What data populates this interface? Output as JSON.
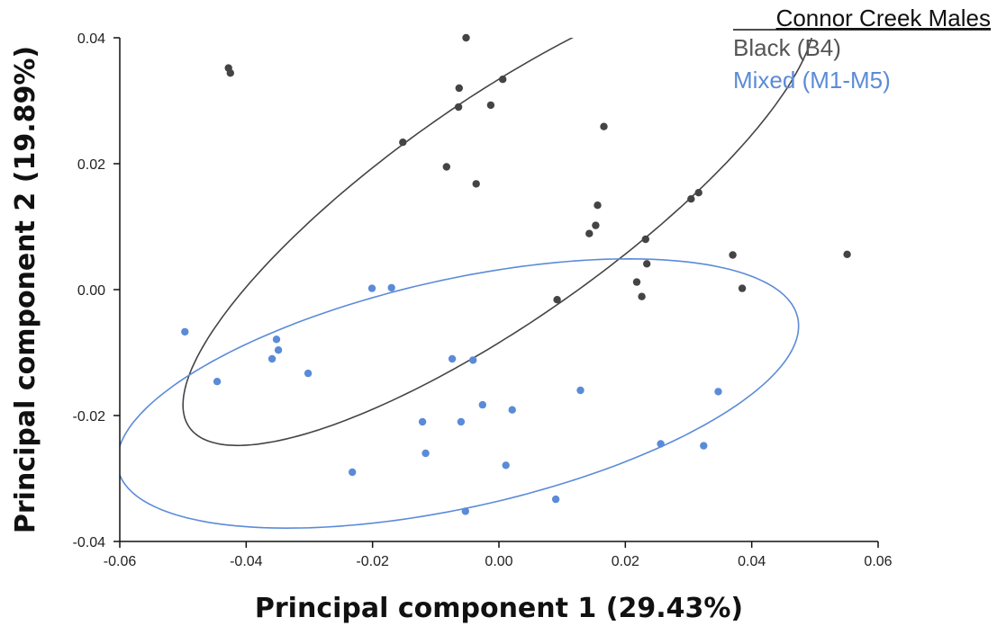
{
  "chart_data": {
    "type": "scatter",
    "title": "",
    "xlabel": "Principal component 1 (29.43%)",
    "ylabel": "Principal component 2 (19.89%)",
    "xlim": [
      -0.06,
      0.06
    ],
    "ylim": [
      -0.04,
      0.04
    ],
    "xticks": [
      -0.06,
      -0.04,
      -0.02,
      0.0,
      0.02,
      0.04,
      0.06
    ],
    "yticks": [
      -0.04,
      -0.02,
      0.0,
      0.02,
      0.04
    ],
    "xtick_labels": [
      "-0.06",
      "-0.04",
      "-0.02",
      "0.00",
      "0.02",
      "0.04",
      "0.06"
    ],
    "ytick_labels": [
      "-0.04",
      "-0.02",
      "0.00",
      "0.02",
      "0.04"
    ],
    "grid": false,
    "legend": {
      "title": "Connor Creek Males",
      "placement": "top-right",
      "entries": [
        "Black (B4)",
        "Mixed (M1-M5)"
      ]
    },
    "series": [
      {
        "name": "Black (B4)",
        "color": "#444444",
        "points": [
          [
            -0.0428,
            0.0352
          ],
          [
            -0.0425,
            0.0344
          ],
          [
            -0.0052,
            0.04
          ],
          [
            -0.0063,
            0.032
          ],
          [
            0.0006,
            0.0334
          ],
          [
            -0.0064,
            0.029
          ],
          [
            -0.0013,
            0.0293
          ],
          [
            0.0166,
            0.0259
          ],
          [
            -0.0152,
            0.0234
          ],
          [
            -0.0083,
            0.0195
          ],
          [
            -0.0036,
            0.0168
          ],
          [
            0.0156,
            0.0134
          ],
          [
            0.0153,
            0.0102
          ],
          [
            0.0143,
            0.0089
          ],
          [
            0.0232,
            0.008
          ],
          [
            0.0304,
            0.0144
          ],
          [
            0.0316,
            0.0154
          ],
          [
            0.0234,
            0.0041
          ],
          [
            0.037,
            0.0055
          ],
          [
            0.0551,
            0.0056
          ],
          [
            0.0218,
            0.0012
          ],
          [
            0.0385,
            0.0002
          ],
          [
            0.0226,
            -0.0011
          ],
          [
            0.0092,
            -0.0016
          ]
        ],
        "ellipse": {
          "cx": 0.0,
          "cy": 0.0125,
          "rx": 0.0598,
          "ry": 0.0175,
          "angle_deg": -35
        }
      },
      {
        "name": "Mixed (M1-M5)",
        "color": "#5b8bd8",
        "points": [
          [
            -0.0497,
            -0.0067
          ],
          [
            -0.0201,
            0.0002
          ],
          [
            -0.017,
            0.0003
          ],
          [
            -0.0352,
            -0.0079
          ],
          [
            -0.0349,
            -0.0096
          ],
          [
            -0.0359,
            -0.011
          ],
          [
            -0.0302,
            -0.0133
          ],
          [
            -0.0446,
            -0.0146
          ],
          [
            -0.0074,
            -0.011
          ],
          [
            -0.0041,
            -0.0112
          ],
          [
            -0.0026,
            -0.0183
          ],
          [
            0.0021,
            -0.0191
          ],
          [
            -0.0121,
            -0.021
          ],
          [
            -0.006,
            -0.021
          ],
          [
            0.0129,
            -0.016
          ],
          [
            0.0347,
            -0.0162
          ],
          [
            -0.0116,
            -0.026
          ],
          [
            0.0256,
            -0.0245
          ],
          [
            0.0324,
            -0.0248
          ],
          [
            -0.0232,
            -0.029
          ],
          [
            0.0011,
            -0.0279
          ],
          [
            0.009,
            -0.0333
          ],
          [
            -0.0053,
            -0.0352
          ]
        ],
        "ellipse": {
          "cx": -0.0065,
          "cy": -0.0165,
          "rx": 0.0551,
          "ry": 0.0181,
          "angle_deg": -12.6
        }
      }
    ]
  }
}
